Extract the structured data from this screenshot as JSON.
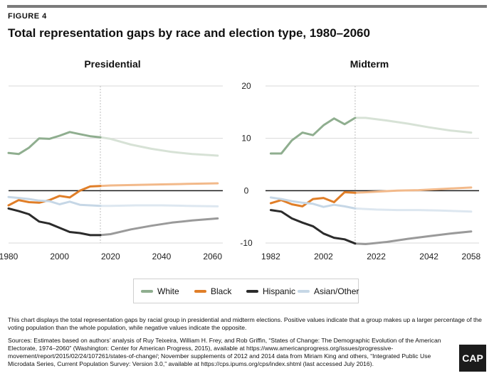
{
  "figure_label": "FIGURE 4",
  "title": "Total representation gaps by race and election type, 1980–2060",
  "legend": [
    {
      "label": "White",
      "color": "#8fae8f"
    },
    {
      "label": "Black",
      "color": "#e07e28"
    },
    {
      "label": "Hispanic",
      "color": "#2b2b2b"
    },
    {
      "label": "Asian/Other",
      "color": "#c6d7e6"
    }
  ],
  "note": "This chart displays the total representation gaps by racial group in presidential and midterm elections. Positive values indicate that a group makes up a larger percentage of the voting population than the whole population, while negative values indicate the opposite.",
  "sources": "Sources: Estimates based on authors’ analysis of Ruy Teixeira, William H. Frey, and Rob Griffin, “States of Change: The Demographic Evolution of the American Electorate, 1974–2060” (Washington: Center for American Progress, 2015), available at https://www.americanprogress.org/issues/progressive-movement/report/2015/02/24/107261/states-of-change/; November supplements of 2012 and 2014 data from Miriam King and others, “Integrated Public Use Microdata Series, Current Population Survey: Version 3.0,” available at https://cps.ipums.org/cps/index.shtml (last accessed July 2016).",
  "logo_text": "CAP",
  "chart_data": [
    {
      "type": "line",
      "title": "Presidential",
      "xlim": [
        1980,
        2064
      ],
      "ylim": [
        -10,
        20
      ],
      "xticks": [
        "1980",
        "2000",
        "2020",
        "2040",
        "2060"
      ],
      "xtick_values": [
        1980,
        2000,
        2020,
        2040,
        2060
      ],
      "yticks": [],
      "projection_start": 2016,
      "series": [
        {
          "name": "White",
          "color": "#8fae8f",
          "projection_color": "#d7e2d6",
          "x": [
            1980,
            1984,
            1988,
            1992,
            1996,
            2000,
            2004,
            2008,
            2012,
            2016,
            2020,
            2028,
            2036,
            2044,
            2052,
            2062
          ],
          "y": [
            7.2,
            7.0,
            8.2,
            10.0,
            9.9,
            10.5,
            11.2,
            10.8,
            10.4,
            10.2,
            9.9,
            8.8,
            8.0,
            7.4,
            7.0,
            6.7
          ]
        },
        {
          "name": "Black",
          "color": "#e07e28",
          "projection_color": "#f2b98a",
          "x": [
            1980,
            1984,
            1988,
            1992,
            1996,
            2000,
            2004,
            2008,
            2012,
            2016,
            2020,
            2030,
            2040,
            2050,
            2062
          ],
          "y": [
            -2.8,
            -1.8,
            -2.2,
            -2.3,
            -1.8,
            -1.0,
            -1.3,
            0.0,
            0.8,
            0.9,
            1.0,
            1.1,
            1.2,
            1.3,
            1.4
          ]
        },
        {
          "name": "Hispanic",
          "color": "#2b2b2b",
          "projection_color": "#9a9a9a",
          "x": [
            1980,
            1984,
            1988,
            1992,
            1996,
            2000,
            2004,
            2008,
            2012,
            2016,
            2020,
            2028,
            2036,
            2044,
            2052,
            2062
          ],
          "y": [
            -3.4,
            -3.9,
            -4.5,
            -5.9,
            -6.3,
            -7.1,
            -7.9,
            -8.1,
            -8.5,
            -8.5,
            -8.3,
            -7.4,
            -6.7,
            -6.1,
            -5.7,
            -5.3
          ]
        },
        {
          "name": "Asian/Other",
          "color": "#c6d7e6",
          "projection_color": "#dde7f0",
          "x": [
            1980,
            1984,
            1988,
            1992,
            1996,
            2000,
            2004,
            2008,
            2012,
            2016,
            2020,
            2030,
            2040,
            2050,
            2062
          ],
          "y": [
            -1.2,
            -1.4,
            -1.6,
            -1.9,
            -2.0,
            -2.6,
            -2.1,
            -2.7,
            -2.8,
            -2.9,
            -2.9,
            -2.8,
            -2.8,
            -2.9,
            -3.0
          ]
        }
      ]
    },
    {
      "type": "line",
      "title": "Midterm",
      "xlim": [
        1980,
        2061
      ],
      "ylim": [
        -10,
        20
      ],
      "xticks": [
        "1982",
        "2002",
        "2022",
        "2042",
        "2058"
      ],
      "xtick_values": [
        1982,
        2002,
        2022,
        2042,
        2058
      ],
      "yticks": [
        "20",
        "10",
        "0",
        "-10"
      ],
      "ytick_values": [
        20,
        10,
        0,
        -10
      ],
      "projection_start": 2014,
      "series": [
        {
          "name": "White",
          "color": "#8fae8f",
          "projection_color": "#d7e2d6",
          "x": [
            1982,
            1986,
            1990,
            1994,
            1998,
            2002,
            2006,
            2010,
            2014,
            2018,
            2026,
            2034,
            2042,
            2050,
            2058
          ],
          "y": [
            7.1,
            7.1,
            9.6,
            11.1,
            10.6,
            12.5,
            13.8,
            12.7,
            13.9,
            13.9,
            13.4,
            12.8,
            12.1,
            11.5,
            11.1
          ]
        },
        {
          "name": "Black",
          "color": "#e07e28",
          "projection_color": "#f2b98a",
          "x": [
            1982,
            1986,
            1990,
            1994,
            1998,
            2002,
            2006,
            2010,
            2014,
            2022,
            2030,
            2038,
            2046,
            2058
          ],
          "y": [
            -2.4,
            -1.8,
            -2.6,
            -3.0,
            -1.6,
            -1.4,
            -2.2,
            -0.3,
            -0.4,
            -0.2,
            0.0,
            0.1,
            0.3,
            0.6
          ]
        },
        {
          "name": "Hispanic",
          "color": "#2b2b2b",
          "projection_color": "#9a9a9a",
          "x": [
            1982,
            1986,
            1990,
            1994,
            1998,
            2002,
            2006,
            2010,
            2014,
            2018,
            2026,
            2034,
            2042,
            2050,
            2058
          ],
          "y": [
            -3.7,
            -4.0,
            -5.3,
            -6.1,
            -6.8,
            -8.2,
            -9.0,
            -9.3,
            -10.1,
            -10.2,
            -9.8,
            -9.2,
            -8.7,
            -8.2,
            -7.8
          ]
        },
        {
          "name": "Asian/Other",
          "color": "#c6d7e6",
          "projection_color": "#dde7f0",
          "x": [
            1982,
            1986,
            1990,
            1994,
            1998,
            2002,
            2006,
            2010,
            2014,
            2022,
            2030,
            2038,
            2046,
            2058
          ],
          "y": [
            -1.3,
            -1.6,
            -2.0,
            -2.3,
            -2.5,
            -3.1,
            -2.7,
            -3.0,
            -3.4,
            -3.6,
            -3.7,
            -3.7,
            -3.8,
            -4.0
          ]
        }
      ]
    }
  ]
}
